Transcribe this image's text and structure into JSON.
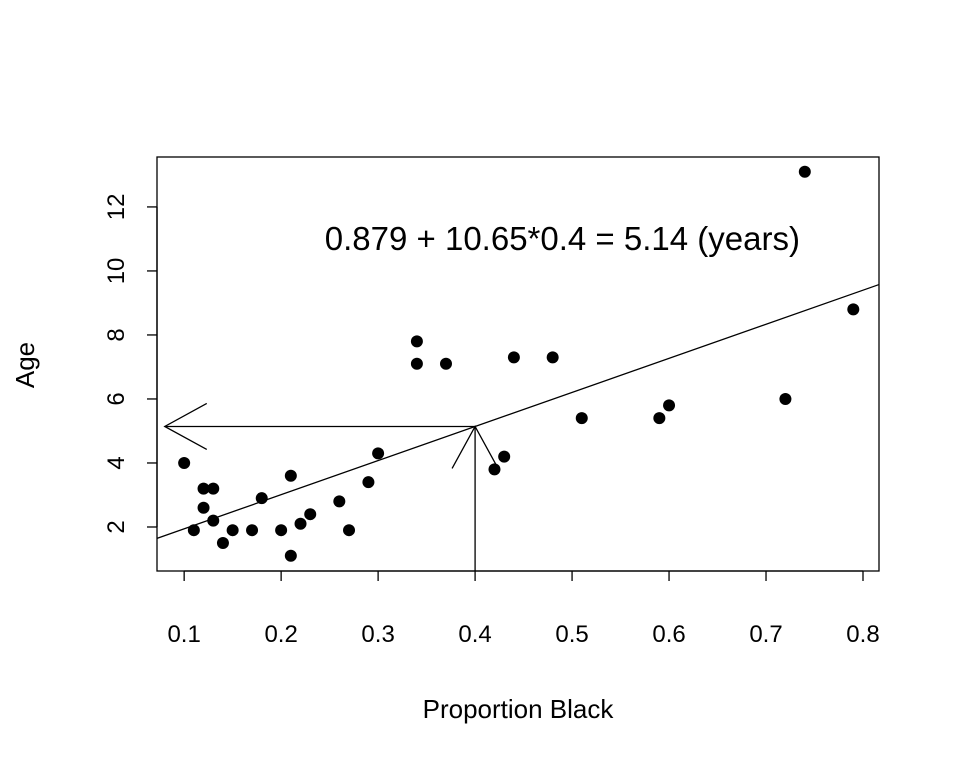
{
  "chart_data": {
    "type": "scatter",
    "title": "",
    "xlabel": "Proportion Black",
    "ylabel": "Age",
    "xlim": [
      0.072,
      0.8165
    ],
    "ylim": [
      0.625,
      13.56
    ],
    "xticks": [
      0.1,
      0.2,
      0.3,
      0.4,
      0.5,
      0.6,
      0.7,
      0.8
    ],
    "xtick_labels": [
      "0.1",
      "0.2",
      "0.3",
      "0.4",
      "0.5",
      "0.6",
      "0.7",
      "0.8"
    ],
    "yticks": [
      2,
      4,
      6,
      8,
      10,
      12
    ],
    "ytick_labels": [
      "2",
      "4",
      "6",
      "8",
      "10",
      "12"
    ],
    "grid": false,
    "points": {
      "x": [
        0.1,
        0.11,
        0.12,
        0.13,
        0.12,
        0.13,
        0.14,
        0.15,
        0.17,
        0.18,
        0.2,
        0.21,
        0.21,
        0.22,
        0.23,
        0.26,
        0.27,
        0.29,
        0.3,
        0.34,
        0.34,
        0.37,
        0.42,
        0.43,
        0.44,
        0.48,
        0.51,
        0.59,
        0.6,
        0.72,
        0.74,
        0.79
      ],
      "y": [
        4.0,
        1.9,
        3.2,
        3.2,
        2.6,
        2.2,
        1.5,
        1.9,
        1.9,
        2.9,
        1.9,
        3.6,
        1.1,
        2.1,
        2.4,
        2.8,
        1.9,
        3.4,
        4.3,
        7.8,
        7.1,
        7.1,
        3.8,
        4.2,
        7.3,
        7.3,
        5.4,
        5.4,
        5.8,
        6.0,
        13.1,
        8.8
      ]
    },
    "regression_line": {
      "intercept": 0.879,
      "slope": 10.65
    },
    "prediction": {
      "x": 0.4,
      "y": 5.14
    },
    "annotation": {
      "text": "0.879 + 10.65*0.4 = 5.14 (years)",
      "x": 0.49,
      "y": 11.0
    }
  }
}
